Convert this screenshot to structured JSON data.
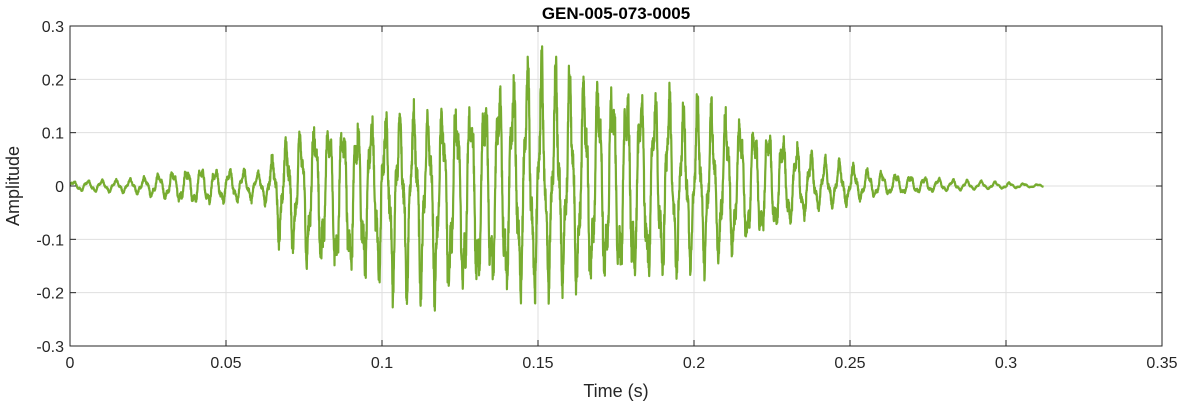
{
  "chart_data": {
    "type": "line",
    "title": "GEN-005-073-0005",
    "xlabel": "Time (s)",
    "ylabel": "Amplitude",
    "xlim": [
      0,
      0.35
    ],
    "ylim": [
      -0.3,
      0.3
    ],
    "xticks": [
      0,
      0.05,
      0.1,
      0.15,
      0.2,
      0.25,
      0.3,
      0.35
    ],
    "xtick_labels": [
      "0",
      "0.05",
      "0.1",
      "0.15",
      "0.2",
      "0.25",
      "0.3",
      "0.35"
    ],
    "yticks": [
      -0.3,
      -0.2,
      -0.1,
      0,
      0.1,
      0.2,
      0.3
    ],
    "ytick_labels": [
      "-0.3",
      "-0.2",
      "-0.1",
      "0",
      "0.1",
      "0.2",
      "0.3"
    ],
    "grid": true,
    "legend": "none",
    "series": [
      {
        "color": "#77ac30",
        "x": [
          0,
          0.02,
          0.04,
          0.062,
          0.067,
          0.075,
          0.09,
          0.105,
          0.12,
          0.135,
          0.15,
          0.165,
          0.18,
          0.195,
          0.21,
          0.225,
          0.24,
          0.26,
          0.28,
          0.3,
          0.312
        ],
        "envelope_upper": [
          0.01,
          0.015,
          0.04,
          0.03,
          0.08,
          0.12,
          0.13,
          0.15,
          0.16,
          0.2,
          0.27,
          0.24,
          0.21,
          0.19,
          0.16,
          0.12,
          0.06,
          0.03,
          0.015,
          0.008,
          0.003
        ],
        "envelope_lower": [
          -0.01,
          -0.015,
          -0.04,
          -0.03,
          -0.12,
          -0.17,
          -0.2,
          -0.22,
          -0.24,
          -0.23,
          -0.22,
          -0.21,
          -0.2,
          -0.18,
          -0.15,
          -0.1,
          -0.05,
          -0.02,
          -0.01,
          -0.005,
          -0.002
        ],
        "oscillation_frequency_hz": 220
      }
    ]
  }
}
